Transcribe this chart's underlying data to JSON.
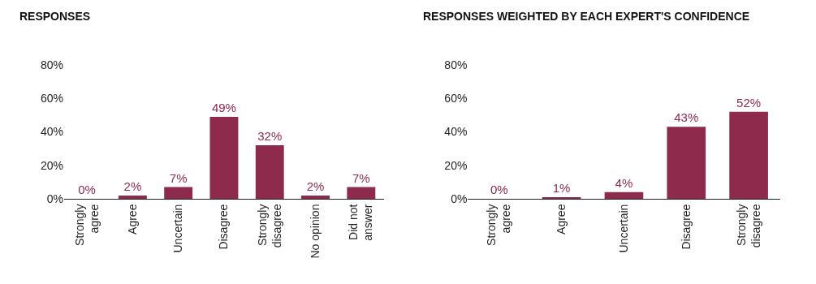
{
  "chart_data": [
    {
      "type": "bar",
      "title": "RESPONSES",
      "categories": [
        "Strongly\nagree",
        "Agree",
        "Uncertain",
        "Disagree",
        "Strongly\ndisagree",
        "No opinion",
        "Did not\nanswer"
      ],
      "values": [
        0,
        2,
        7,
        49,
        32,
        2,
        7
      ],
      "value_labels": [
        "0%",
        "2%",
        "7%",
        "49%",
        "32%",
        "2%",
        "7%"
      ],
      "color": "#8e2a4b",
      "ylim": [
        0,
        80
      ],
      "yticks": [
        {
          "value": 0,
          "label": "0%"
        },
        {
          "value": 20,
          "label": "20%"
        },
        {
          "value": 40,
          "label": "40%"
        },
        {
          "value": 60,
          "label": "60%"
        },
        {
          "value": 80,
          "label": "80%"
        }
      ]
    },
    {
      "type": "bar",
      "title": "RESPONSES WEIGHTED BY EACH EXPERT'S CONFIDENCE",
      "categories": [
        "Strongly\nagree",
        "Agree",
        "Uncertain",
        "Disagree",
        "Strongly\ndisagree"
      ],
      "values": [
        0,
        1,
        4,
        43,
        52
      ],
      "value_labels": [
        "0%",
        "1%",
        "4%",
        "43%",
        "52%"
      ],
      "color": "#8e2a4b",
      "ylim": [
        0,
        80
      ],
      "yticks": [
        {
          "value": 0,
          "label": "0%"
        },
        {
          "value": 20,
          "label": "20%"
        },
        {
          "value": 40,
          "label": "40%"
        },
        {
          "value": 60,
          "label": "60%"
        },
        {
          "value": 80,
          "label": "80%"
        }
      ]
    }
  ]
}
